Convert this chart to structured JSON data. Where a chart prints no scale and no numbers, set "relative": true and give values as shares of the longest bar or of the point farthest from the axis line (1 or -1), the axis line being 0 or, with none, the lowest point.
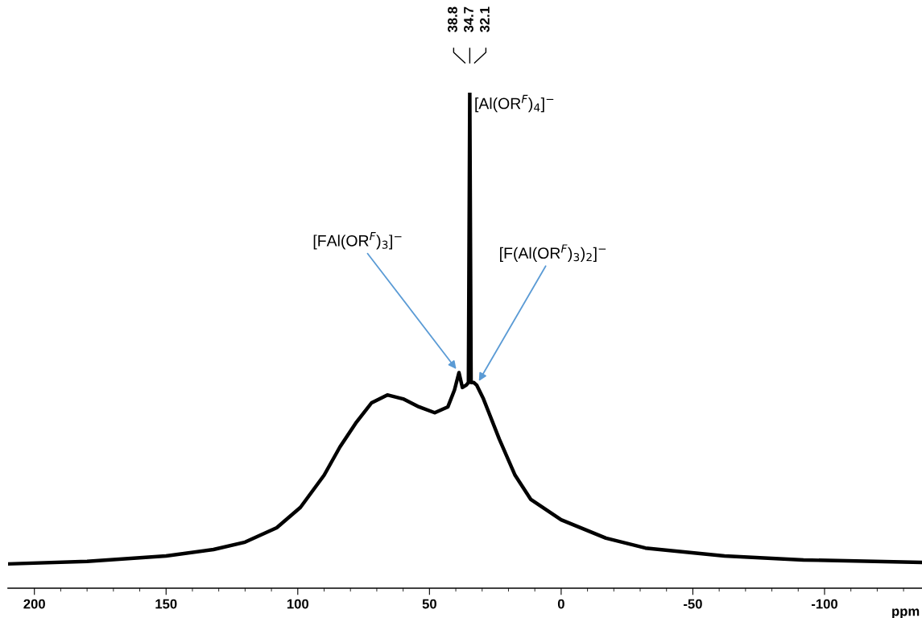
{
  "chart_data": {
    "type": "line",
    "relative": true,
    "xlabel": "ppm",
    "grid": false,
    "marker": "none",
    "line_style": "solid",
    "xlim": [
      210,
      -137
    ],
    "xticks": [
      200,
      {
        "value": 190,
        "label": null
      },
      {
        "value": 180,
        "label": null
      },
      {
        "value": 170,
        "label": null
      },
      {
        "value": 160,
        "label": null
      },
      150,
      {
        "value": 140,
        "label": null
      },
      {
        "value": 130,
        "label": null
      },
      {
        "value": 120,
        "label": null
      },
      {
        "value": 110,
        "label": null
      },
      100,
      {
        "value": 90,
        "label": null
      },
      {
        "value": 80,
        "label": null
      },
      {
        "value": 70,
        "label": null
      },
      {
        "value": 60,
        "label": null
      },
      50,
      {
        "value": 40,
        "label": null
      },
      {
        "value": 30,
        "label": null
      },
      {
        "value": 20,
        "label": null
      },
      {
        "value": 10,
        "label": null
      },
      0,
      {
        "value": -10,
        "label": null
      },
      {
        "value": -20,
        "label": null
      },
      {
        "value": -30,
        "label": null
      },
      {
        "value": -40,
        "label": null
      },
      -50,
      {
        "value": -60,
        "label": null
      },
      {
        "value": -70,
        "label": null
      },
      {
        "value": -80,
        "label": null
      },
      {
        "value": -90,
        "label": null
      },
      -100,
      {
        "value": -110,
        "label": null
      },
      {
        "value": -120,
        "label": null
      },
      {
        "value": -130,
        "label": null
      }
    ],
    "series": [
      {
        "color": "#000000",
        "x": [
          210,
          180,
          150,
          132,
          120,
          108,
          99,
          90,
          84,
          78,
          72,
          66,
          60,
          54,
          48,
          43,
          40.5,
          38.8,
          37.5,
          36,
          35.2,
          34.7,
          34.2,
          33.2,
          32.1,
          29.5,
          23.5,
          17.5,
          11.5,
          0,
          -17,
          -32,
          -62,
          -92,
          -137
        ],
        "values": [
          0.049,
          0.054,
          0.065,
          0.078,
          0.093,
          0.122,
          0.163,
          0.228,
          0.285,
          0.333,
          0.374,
          0.39,
          0.382,
          0.366,
          0.354,
          0.366,
          0.4,
          0.435,
          0.405,
          0.41,
          0.415,
          1.0,
          0.415,
          0.415,
          0.41,
          0.382,
          0.301,
          0.228,
          0.179,
          0.138,
          0.101,
          0.081,
          0.065,
          0.057,
          0.052
        ]
      }
    ],
    "annotations": [
      "38.8",
      "34.7",
      "32.1",
      {
        "text": "[Al(OR$^{F}$)$_{4}$]$^{−}$",
        "x": 34.7,
        "y": 1.0
      },
      {
        "text": "[FAl(OR$^{F}$)$_{3}$]$^{−}$",
        "x": 38.8,
        "y": 0.435
      },
      {
        "text": "[F(Al(OR$^{F}$)$_{3}$)$_{2}$]$^{−}$",
        "x": 32.1,
        "y": 0.41
      }
    ]
  }
}
